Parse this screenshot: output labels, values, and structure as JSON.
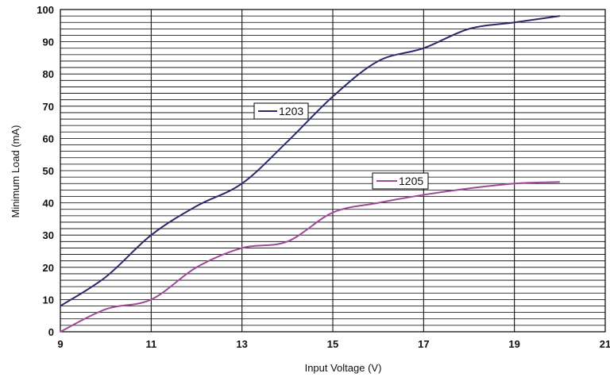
{
  "chart_data": {
    "type": "line",
    "xlabel": "Input Voltage (V)",
    "ylabel": "Minimum Load (mA)",
    "xlim": [
      9,
      21
    ],
    "ylim": [
      0,
      100
    ],
    "x_ticks": [
      "9",
      "11",
      "13",
      "15",
      "17",
      "19",
      "21"
    ],
    "y_ticks": [
      "0",
      "10",
      "20",
      "30",
      "40",
      "50",
      "60",
      "70",
      "80",
      "90",
      "100"
    ],
    "grid": {
      "major_vertical": true,
      "horizontal_step": 2
    },
    "series": [
      {
        "name": "1203",
        "color": "#2b2a6e",
        "x": [
          9,
          10,
          11,
          12,
          13,
          14,
          15,
          16,
          17,
          18,
          19,
          20
        ],
        "y": [
          8,
          17,
          30,
          39,
          46,
          59,
          73,
          84,
          88,
          94,
          96,
          98
        ]
      },
      {
        "name": "1205",
        "color": "#a0489a",
        "x": [
          9,
          10,
          11,
          12,
          13,
          14,
          15,
          16,
          17,
          18,
          19,
          20
        ],
        "y": [
          0,
          7,
          10,
          20,
          26,
          28,
          37,
          40,
          42.5,
          44.5,
          46,
          46.5
        ]
      }
    ]
  }
}
